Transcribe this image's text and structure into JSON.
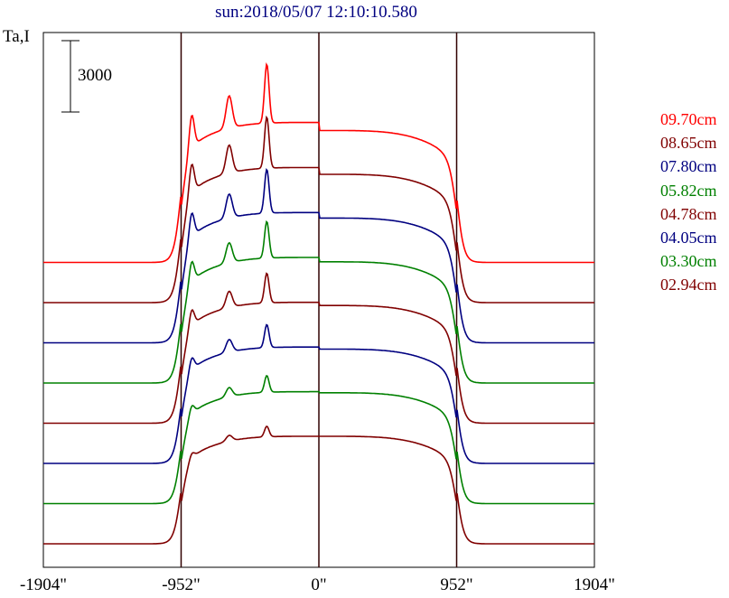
{
  "chart_data": {
    "type": "line",
    "title": "sun:2018/05/07 12:10:10.580",
    "ylabel": "Ta,I",
    "xlabel": "",
    "scale_bar_value": 3000,
    "x_ticks": [
      "-1904\"",
      "-952\"",
      "0\"",
      "952\"",
      "1904\""
    ],
    "x_tick_values": [
      -1904,
      -952,
      0,
      952,
      1904
    ],
    "xlim": [
      -1904,
      1904
    ],
    "vertical_markers": [
      -952,
      0,
      952
    ],
    "series": [
      {
        "name": "09.70cm",
        "color": "#ff0000",
        "offset": 7
      },
      {
        "name": "08.65cm",
        "color": "#800000",
        "offset": 6
      },
      {
        "name": "07.80cm",
        "color": "#000080",
        "offset": 5
      },
      {
        "name": "05.82cm",
        "color": "#008000",
        "offset": 4
      },
      {
        "name": "04.78cm",
        "color": "#800000",
        "offset": 3
      },
      {
        "name": "04.05cm",
        "color": "#000080",
        "offset": 2
      },
      {
        "name": "03.30cm",
        "color": "#008000",
        "offset": 1
      },
      {
        "name": "02.94cm",
        "color": "#800000",
        "offset": 0
      }
    ]
  }
}
